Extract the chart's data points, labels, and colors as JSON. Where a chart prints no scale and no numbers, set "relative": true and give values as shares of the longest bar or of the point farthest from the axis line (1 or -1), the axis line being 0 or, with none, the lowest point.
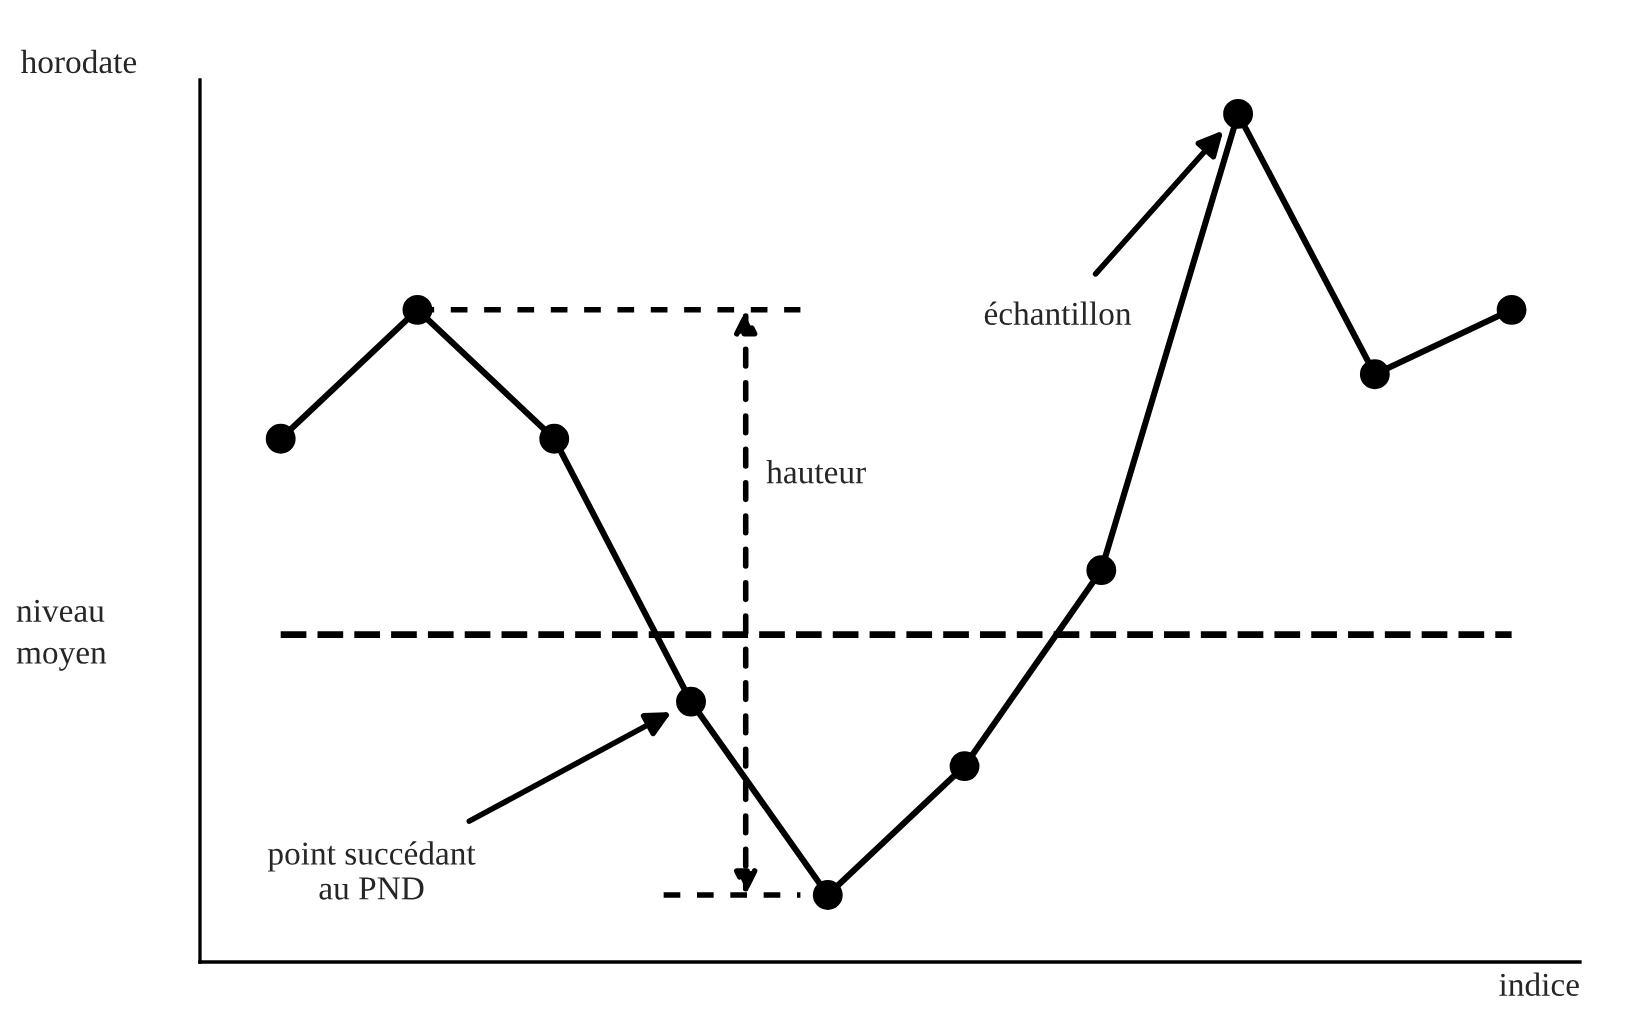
{
  "chart_data": {
    "type": "line",
    "relative": true,
    "xlabel": "indice",
    "ylabel": "horodate",
    "categories": [
      null,
      null,
      null,
      null,
      null,
      null,
      null,
      null,
      null,
      null
    ],
    "series": [
      {
        "color": "#000000",
        "values": [
          0.617,
          0.769,
          0.617,
          0.307,
          0.079,
          0.231,
          0.462,
          1,
          0.693,
          0.769
        ]
      }
    ],
    "marker": "circle",
    "line_style": "solid",
    "grid": false,
    "ref_lines": [
      {
        "axis": "y",
        "value": 0.386,
        "label": "niveau moyen",
        "color": "#000000",
        "line_style": "dashed"
      }
    ],
    "annotations": [
      "échantillon",
      "point succédant\nau PND",
      "hauteur"
    ]
  }
}
